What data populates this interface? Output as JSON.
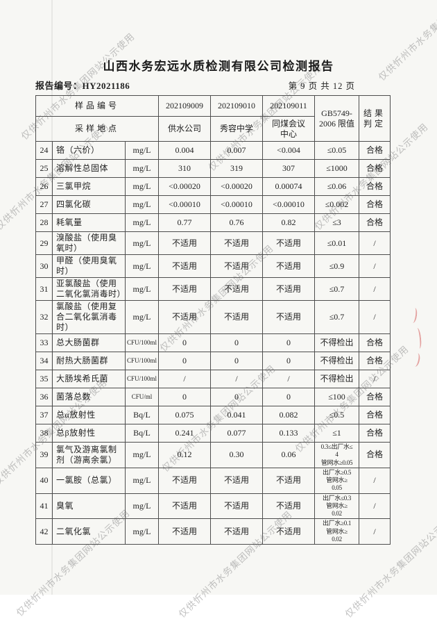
{
  "page": {
    "title": "山西水务宏远水质检测有限公司检测报告",
    "report_no_label": "报告编号：",
    "report_no": "HY2021186",
    "page_info": "第 9 页 共 12 页"
  },
  "watermark": {
    "text": "仅供忻州市水务集团网站公示使用"
  },
  "table": {
    "header": {
      "row1_label": "样品编号",
      "row2_label": "采样地点",
      "sample_ids": [
        "202109009",
        "202109010",
        "202109011"
      ],
      "locations": [
        "供水公司",
        "秀容中学",
        "同煤会议\n中心"
      ],
      "limit_label": "GB5749-\n2006 限值",
      "result_label": "结果\n判定"
    },
    "rows": [
      {
        "no": "24",
        "name": "铬（六价）",
        "unit": "mg/L",
        "values": [
          "0.004",
          "0.007",
          "<0.004"
        ],
        "limit": "≤0.05",
        "result": "合格"
      },
      {
        "no": "25",
        "name": "溶解性总固体",
        "unit": "mg/L",
        "values": [
          "310",
          "319",
          "307"
        ],
        "limit": "≤1000",
        "result": "合格"
      },
      {
        "no": "26",
        "name": "三氯甲烷",
        "unit": "mg/L",
        "values": [
          "<0.00020",
          "<0.00020",
          "0.00074"
        ],
        "limit": "≤0.06",
        "result": "合格"
      },
      {
        "no": "27",
        "name": "四氯化碳",
        "unit": "mg/L",
        "values": [
          "<0.00010",
          "<0.00010",
          "<0.00010"
        ],
        "limit": "≤0.002",
        "result": "合格"
      },
      {
        "no": "28",
        "name": "耗氧量",
        "unit": "mg/L",
        "values": [
          "0.77",
          "0.76",
          "0.82"
        ],
        "limit": "≤3",
        "result": "合格"
      },
      {
        "no": "29",
        "name": "溴酸盐（使用臭氧时）",
        "unit": "mg/L",
        "values": [
          "不适用",
          "不适用",
          "不适用"
        ],
        "limit": "≤0.01",
        "result": "/"
      },
      {
        "no": "30",
        "name": "甲醛（使用臭氧时）",
        "unit": "mg/L",
        "values": [
          "不适用",
          "不适用",
          "不适用"
        ],
        "limit": "≤0.9",
        "result": "/"
      },
      {
        "no": "31",
        "name": "亚氯酸盐（使用二氧化氯消毒时）",
        "unit": "mg/L",
        "values": [
          "不适用",
          "不适用",
          "不适用"
        ],
        "limit": "≤0.7",
        "result": "/"
      },
      {
        "no": "32",
        "name": "氯酸盐（使用复合二氧化氯消毒时）",
        "unit": "mg/L",
        "values": [
          "不适用",
          "不适用",
          "不适用"
        ],
        "limit": "≤0.7",
        "result": "/"
      },
      {
        "no": "33",
        "name": "总大肠菌群",
        "unit": "CFU/100ml",
        "values": [
          "0",
          "0",
          "0"
        ],
        "limit": "不得检出",
        "result": "合格"
      },
      {
        "no": "34",
        "name": "耐热大肠菌群",
        "unit": "CFU/100ml",
        "values": [
          "0",
          "0",
          "0"
        ],
        "limit": "不得检出",
        "result": "合格"
      },
      {
        "no": "35",
        "name": "大肠埃希氏菌",
        "unit": "CFU/100ml",
        "values": [
          "/",
          "/",
          "/"
        ],
        "limit": "不得检出",
        "result": "/"
      },
      {
        "no": "36",
        "name": "菌落总数",
        "unit": "CFU/ml",
        "values": [
          "0",
          "0",
          "0"
        ],
        "limit": "≤100",
        "result": "合格"
      },
      {
        "no": "37",
        "name": "总α放射性",
        "unit": "Bq/L",
        "values": [
          "0.075",
          "0.041",
          "0.082"
        ],
        "limit": "≤0.5",
        "result": "合格"
      },
      {
        "no": "38",
        "name": "总β放射性",
        "unit": "Bq/L",
        "values": [
          "0.241",
          "0.077",
          "0.133"
        ],
        "limit": "≤1",
        "result": "合格"
      },
      {
        "no": "39",
        "name": "氯气及游离氯制剂（游离余氯）",
        "unit": "mg/L",
        "values": [
          "0.12",
          "0.30",
          "0.06"
        ],
        "limit": "0.3≤出厂水≤\n4\n管网水≥0.05",
        "result": "合格"
      },
      {
        "no": "40",
        "name": "一氯胺（总氯）",
        "unit": "mg/L",
        "values": [
          "不适用",
          "不适用",
          "不适用"
        ],
        "limit": "出厂水≥0.5\n管网水≥\n0.05",
        "result": "/"
      },
      {
        "no": "41",
        "name": "臭氧",
        "unit": "mg/L",
        "values": [
          "不适用",
          "不适用",
          "不适用"
        ],
        "limit": "出厂水≤0.3\n管网水≥\n0.02",
        "result": "/"
      },
      {
        "no": "42",
        "name": "二氧化氯",
        "unit": "mg/L",
        "values": [
          "不适用",
          "不适用",
          "不适用"
        ],
        "limit": "出厂水≥0.1\n管网水≥\n0.02",
        "result": "/"
      }
    ]
  }
}
